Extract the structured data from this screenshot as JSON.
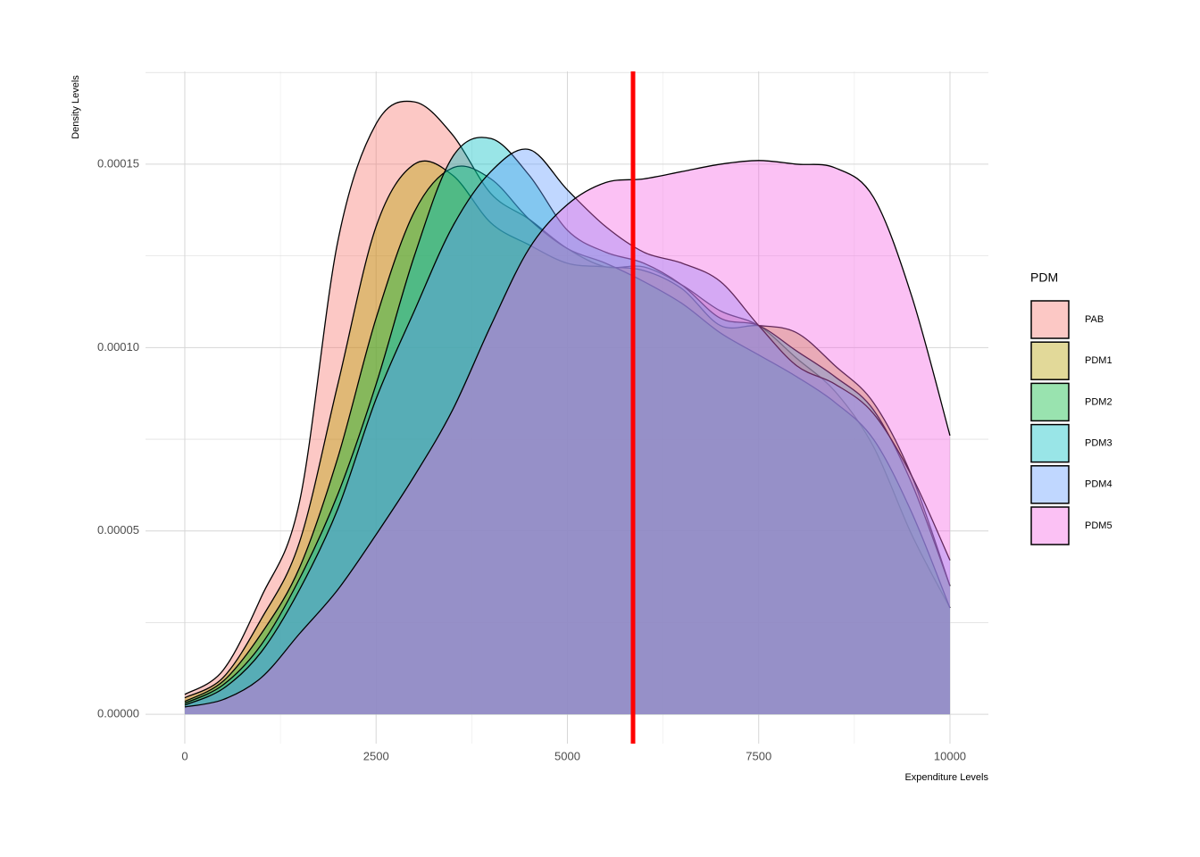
{
  "chart_data": {
    "type": "density",
    "x_label": "Expenditure Levels",
    "y_label": "Density Levels",
    "legend_title": "PDM",
    "legend_position": "right",
    "fill_opacity": 0.4,
    "grid": true,
    "minor_grid": true,
    "xlim": [
      -513,
      10502
    ],
    "ylim": [
      -8e-06,
      0.0001753
    ],
    "xticks": [
      0,
      2500,
      5000,
      7500,
      10000
    ],
    "yticks": [
      {
        "value": 0,
        "label": "0.00000"
      },
      {
        "value": 5e-05,
        "label": "0.00005"
      },
      {
        "value": 0.0001,
        "label": "0.00010"
      },
      {
        "value": 0.00015,
        "label": "0.00015"
      }
    ],
    "vline": {
      "x": 5858,
      "color": "#ff0000"
    },
    "x": [
      0,
      500,
      1000,
      1500,
      2000,
      2500,
      3000,
      3500,
      4000,
      4500,
      5000,
      5500,
      6000,
      6500,
      7000,
      7500,
      8000,
      8500,
      9000,
      9500,
      10000
    ],
    "series": [
      {
        "name": "PAB",
        "color": "#F8766D",
        "values": [
          5.4e-06,
          1.2e-05,
          3.2e-05,
          5.8e-05,
          0.000129,
          0.000161,
          0.000167,
          0.000158,
          0.000142,
          0.000135,
          0.000127,
          0.000122,
          0.000122,
          0.000117,
          0.00011,
          0.000106,
          9.7e-05,
          8.8e-05,
          7.3e-05,
          4.9e-05,
          2.9e-05
        ]
      },
      {
        "name": "PDM1",
        "color": "#B79F00",
        "values": [
          4.5e-06,
          1e-05,
          2.6e-05,
          4.7e-05,
          9e-05,
          0.000133,
          0.00015,
          0.000147,
          0.000134,
          0.000128,
          0.000123,
          0.000122,
          0.000121,
          0.000116,
          0.000106,
          0.000106,
          0.000104,
          9.5e-05,
          8.5e-05,
          6.5e-05,
          3.5e-05
        ]
      },
      {
        "name": "PDM2",
        "color": "#00BA38",
        "values": [
          3.5e-06,
          9e-06,
          2.2e-05,
          4e-05,
          7e-05,
          0.000108,
          0.000137,
          0.000149,
          0.000146,
          0.000135,
          0.000127,
          0.000123,
          0.000118,
          0.000112,
          0.000104,
          9.8e-05,
          9.2e-05,
          8.5e-05,
          7.5e-05,
          5.5e-05,
          2.9e-05
        ]
      },
      {
        "name": "PDM3",
        "color": "#00BFC4",
        "values": [
          3e-06,
          8e-06,
          1.9e-05,
          3.7e-05,
          6e-05,
          9e-05,
          0.000125,
          0.000152,
          0.000157,
          0.000147,
          0.000132,
          0.000126,
          0.000123,
          0.000117,
          0.000108,
          0.000106,
          9.9e-05,
          9.2e-05,
          8.3e-05,
          6.3e-05,
          3.5e-05
        ]
      },
      {
        "name": "PDM4",
        "color": "#619CFF",
        "values": [
          2.5e-06,
          7e-06,
          1.7e-05,
          3.4e-05,
          5.6e-05,
          8.6e-05,
          0.00011,
          0.000133,
          0.000148,
          0.000154,
          0.000143,
          0.000133,
          0.000126,
          0.000123,
          0.000118,
          0.000106,
          9.5e-05,
          9e-05,
          8.2e-05,
          6.5e-05,
          4.2e-05
        ]
      },
      {
        "name": "PDM5",
        "color": "#F564E3",
        "values": [
          2e-06,
          4e-06,
          1e-05,
          2.2e-05,
          3.4e-05,
          4.9e-05,
          6.5e-05,
          8.3e-05,
          0.000106,
          0.000127,
          0.000139,
          0.000145,
          0.000146,
          0.000148,
          0.00015,
          0.000151,
          0.00015,
          0.000149,
          0.000141,
          0.000114,
          7.6e-05
        ]
      }
    ]
  }
}
